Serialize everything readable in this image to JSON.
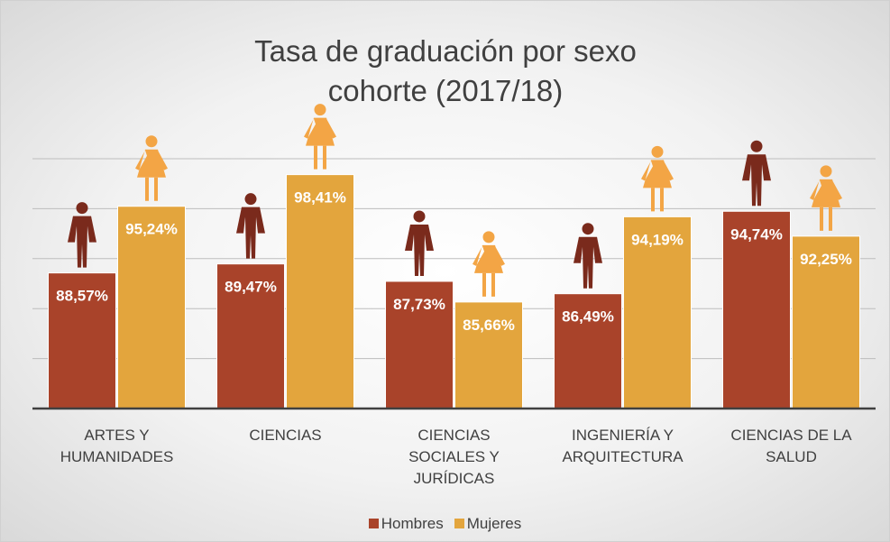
{
  "chart_data": {
    "type": "bar",
    "title": "Tasa de graduación por sexo cohorte (2017/18)",
    "categories": [
      "ARTES Y HUMANIDADES",
      "CIENCIAS",
      "CIENCIAS SOCIALES Y JURÍDICAS",
      "INGENIERÍA Y ARQUITECTURA",
      "CIENCIAS DE LA SALUD"
    ],
    "series": [
      {
        "name": "Hombres",
        "color": "#a9432a",
        "icon_color": "#7a2a1c",
        "values": [
          88.57,
          89.47,
          87.73,
          86.49,
          94.74
        ],
        "value_labels": [
          "88,57%",
          "89,47%",
          "87,73%",
          "86,49%",
          "94,74%"
        ]
      },
      {
        "name": "Mujeres",
        "color": "#e3a53d",
        "icon_color": "#f3a545",
        "values": [
          95.24,
          98.41,
          85.66,
          94.19,
          92.25
        ],
        "value_labels": [
          "95,24%",
          "98,41%",
          "85,66%",
          "94,19%",
          "92,25%"
        ]
      }
    ],
    "ylim": [
      75,
      100
    ],
    "yticks": [
      75,
      80,
      85,
      90,
      95,
      100
    ],
    "grid": true,
    "legend": "bottom"
  }
}
